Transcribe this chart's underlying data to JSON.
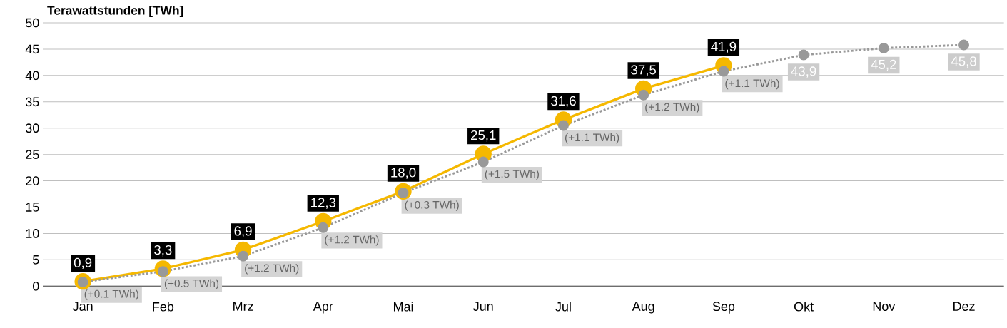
{
  "chart_data": {
    "type": "line",
    "ylabel": "Terawattstunden [TWh]",
    "categories": [
      "Jan",
      "Feb",
      "Mrz",
      "Apr",
      "Mai",
      "Jun",
      "Jul",
      "Aug",
      "Sep",
      "Okt",
      "Nov",
      "Dez"
    ],
    "series": [
      {
        "color": "#f5b800",
        "marker": "circle",
        "line_style": "solid",
        "values": [
          0.9,
          3.3,
          6.9,
          12.3,
          18.0,
          25.1,
          31.6,
          37.5,
          41.9,
          null,
          null,
          null
        ],
        "value_labels": [
          "0,9",
          "3,3",
          "6,9",
          "12,3",
          "18,0",
          "25,1",
          "31,6",
          "37,5",
          "41,9",
          null,
          null,
          null
        ]
      },
      {
        "color": "#999999",
        "marker": "circle",
        "line_style": "dotted",
        "values": [
          0.8,
          2.8,
          5.7,
          11.1,
          17.7,
          23.6,
          30.5,
          36.3,
          40.8,
          43.9,
          45.2,
          45.8
        ],
        "value_labels": [
          null,
          null,
          null,
          null,
          null,
          null,
          null,
          null,
          null,
          "43,9",
          "45,2",
          "45,8"
        ]
      }
    ],
    "annotations": [
      {
        "text": "(+0.1 TWh)",
        "x": "Jan",
        "y": 0.8
      },
      {
        "text": "(+0.5 TWh)",
        "x": "Feb",
        "y": 2.8
      },
      {
        "text": "(+1.2 TWh)",
        "x": "Mrz",
        "y": 5.7
      },
      {
        "text": "(+1.2 TWh)",
        "x": "Apr",
        "y": 11.1
      },
      {
        "text": "(+0.3 TWh)",
        "x": "Mai",
        "y": 17.7
      },
      {
        "text": "(+1.5 TWh)",
        "x": "Jun",
        "y": 23.6
      },
      {
        "text": "(+1.1 TWh)",
        "x": "Jul",
        "y": 30.5
      },
      {
        "text": "(+1.2 TWh)",
        "x": "Aug",
        "y": 36.3
      },
      {
        "text": "(+1.1 TWh)",
        "x": "Sep",
        "y": 40.8
      }
    ],
    "ylim": [
      0,
      50
    ],
    "yticks": [
      0,
      5,
      10,
      15,
      20,
      25,
      30,
      35,
      40,
      45,
      50
    ],
    "grid": "y"
  }
}
